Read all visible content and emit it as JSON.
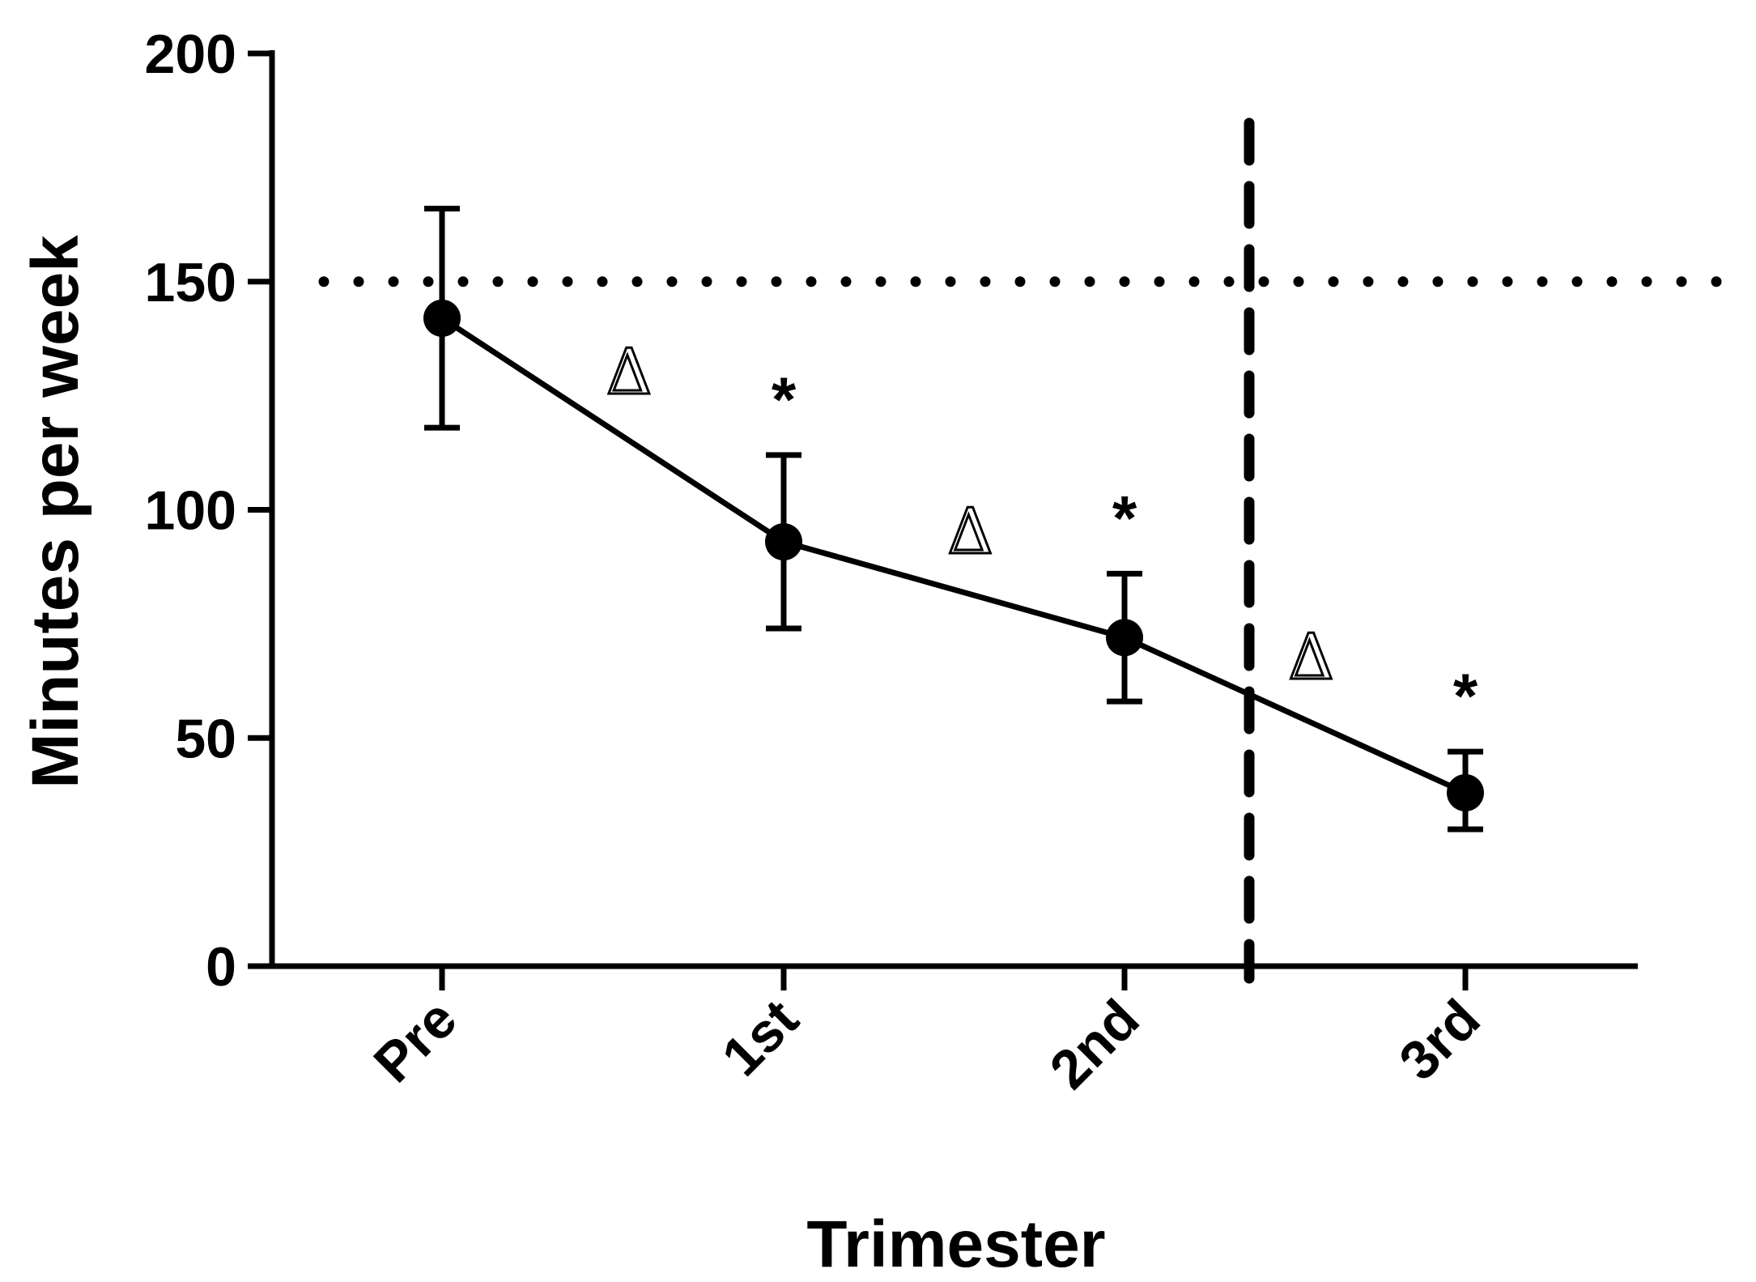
{
  "chart_data": {
    "type": "line",
    "title": "",
    "xlabel": "Trimester",
    "ylabel": "Minutes per week",
    "categories": [
      "Pre",
      "1st",
      "2nd",
      "3rd"
    ],
    "values": [
      142,
      93,
      72,
      38
    ],
    "error_upper": [
      166,
      112,
      86,
      47
    ],
    "error_lower": [
      118,
      74,
      58,
      30
    ],
    "ylim": [
      0,
      200
    ],
    "yticks": [
      "0",
      "50",
      "100",
      "150",
      "200"
    ],
    "grid": false,
    "legend": "none",
    "reference_line_y": 150,
    "reference_line_style": "dotted",
    "divider_between_categories": [
      "2nd",
      "3rd"
    ],
    "divider_style": "dashed",
    "star_annotations": [
      {
        "category": "1st",
        "text": "*"
      },
      {
        "category": "2nd",
        "text": "*"
      },
      {
        "category": "3rd",
        "text": "*"
      }
    ],
    "delta_annotations": [
      {
        "between": [
          "Pre",
          "1st"
        ],
        "text": "Δ"
      },
      {
        "between": [
          "1st",
          "2nd"
        ],
        "text": "Δ"
      },
      {
        "between": [
          "2nd",
          "3rd"
        ],
        "text": "Δ"
      }
    ],
    "colors": {
      "line": "#000000",
      "marker": "#000000",
      "axis": "#000000"
    }
  }
}
